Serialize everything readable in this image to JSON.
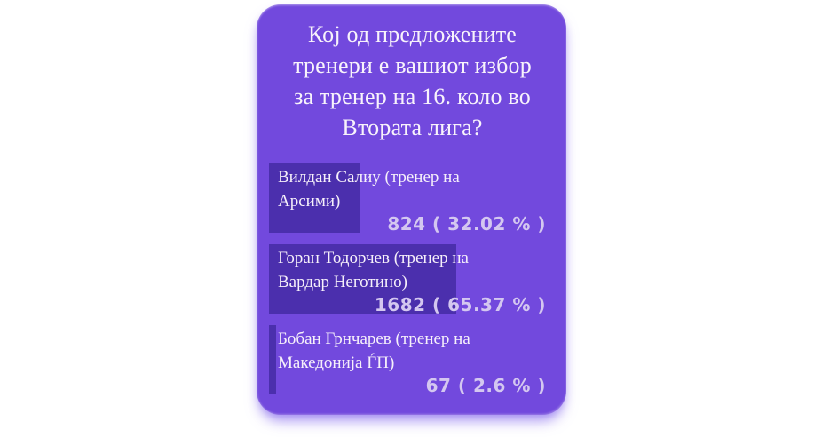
{
  "poll": {
    "question_full": "Кој од предложените тренери е вашиот избор за тренер на 16. коло во Втората лига?",
    "question_lines": [
      "Кој од предложените",
      "тренери е вашиот избор",
      "за тренер на 16. коло во",
      "Втората лига?"
    ],
    "options": [
      {
        "label_lines": [
          "Вилдан Салиу (тренер на",
          "Арсими)"
        ],
        "votes": "824",
        "percent": "32.02 %",
        "result_text": "824 ( 32.02 % )",
        "bar_width": "32.02%"
      },
      {
        "label_lines": [
          "Горан Тодорчев (тренер на",
          "Вардар Неготино)"
        ],
        "votes": "1682",
        "percent": "65.37 %",
        "result_text": "1682 ( 65.37 % )",
        "bar_width": "65.37%"
      },
      {
        "label_lines": [
          "Бобан Грнчарев (тренер на",
          "Македонија ЃП)"
        ],
        "votes": "67",
        "percent": "2.6 %",
        "result_text": "67 ( 2.6 % )",
        "bar_width": "2.6%"
      }
    ],
    "colors": {
      "page_background": "#ffffff",
      "card_background": "#7249dd",
      "bar_fill": "#4b2fad",
      "question_text": "#f8f3fb",
      "label_text": "#f6f0fa",
      "result_text": "#d4c7f0"
    }
  }
}
